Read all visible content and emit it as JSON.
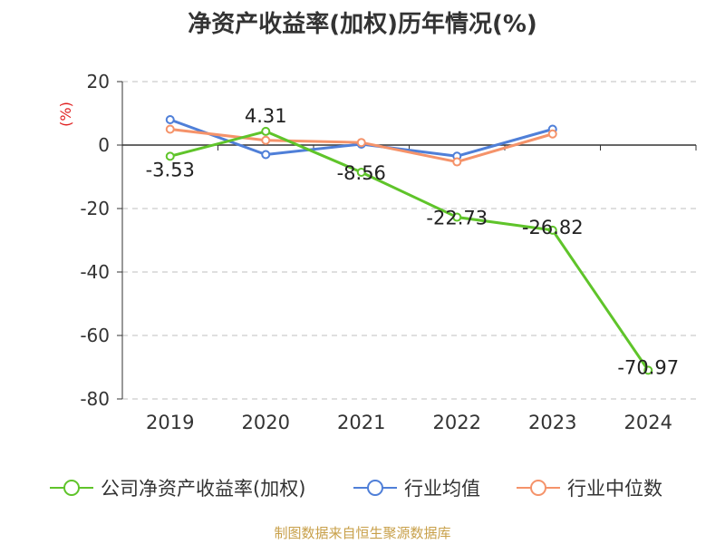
{
  "title": "净资产收益率(加权)历年情况(%)",
  "source": "制图数据来自恒生聚源数据库",
  "chart_data": {
    "type": "line",
    "title": "净资产收益率(加权)历年情况(%)",
    "ylabel": "(%)",
    "xlabel": "",
    "categories": [
      "2019",
      "2020",
      "2021",
      "2022",
      "2023",
      "2024"
    ],
    "ylim": [
      -80,
      20
    ],
    "yticks": [
      20,
      0,
      -20,
      -40,
      -60,
      -80
    ],
    "grid": true,
    "legend_position": "bottom",
    "series": [
      {
        "name": "公司净资产收益率(加权)",
        "color": "#5fc42a",
        "values": [
          -3.53,
          4.31,
          -8.56,
          -22.73,
          -26.82,
          -70.97
        ],
        "labels": [
          "-3.53",
          "4.31",
          "-8.56",
          "-22.73",
          "-26.82",
          "-70.97"
        ]
      },
      {
        "name": "行业均值",
        "color": "#4f7fd8",
        "values": [
          8.0,
          -3.0,
          0.3,
          -3.5,
          5.0,
          null
        ]
      },
      {
        "name": "行业中位数",
        "color": "#f5936a",
        "values": [
          5.0,
          1.5,
          0.8,
          -5.3,
          3.5,
          null
        ]
      }
    ]
  }
}
